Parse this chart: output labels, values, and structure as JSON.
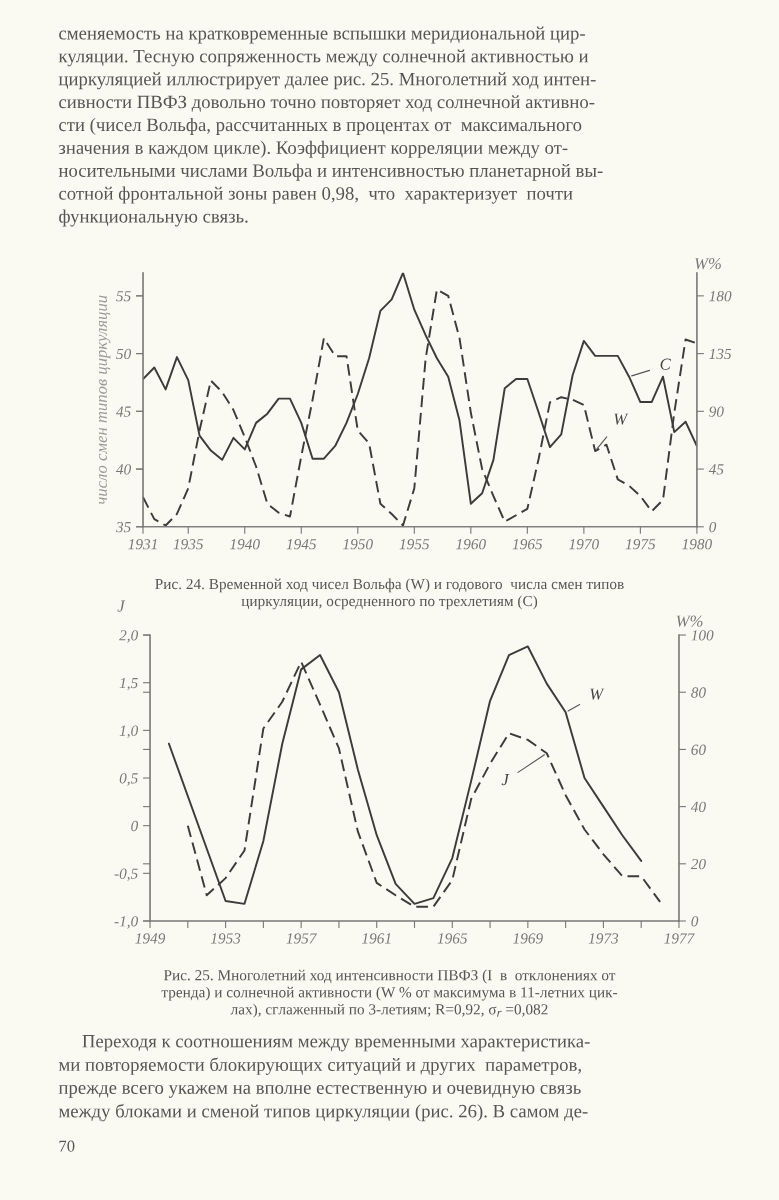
{
  "chart_data": [
    {
      "type": "line",
      "ylabel": "число смен типов циркуляции",
      "y2label": "W%",
      "legend": false,
      "annotations": [
        "сменяемость на кратковременные вспышки меридиональной цир-\nкуляции. Тесную сопряженность между солнечной активностью и\nциркуляцией иллюстрирует далее рис. 25. Многолетний ход интен-\nсивности ПВФЗ довольно точно повторяет ход солнечной активно-\nсти (чисел Вольфа, рассчитанных в процентах от  максимального\nзначения в каждом цикле). Коэффициент корреляции между от-\nносительными числами Вольфа и интенсивностью планетарной вы-\nсотной фронтальной зоны равен 0,98,  что  характеризует  почти\nфункциональную связь.",
        "Рис. 24. Временной ход чисел Вольфа (W) и годового  числа смен типов\nциркуляции, осредненного по трехлетиям (C)"
      ],
      "xlim": [
        1931,
        1980
      ],
      "xticks": [
        1931,
        1935,
        1940,
        1945,
        1950,
        1955,
        1960,
        1965,
        1970,
        1975,
        1980
      ],
      "ylim": [
        35,
        57
      ],
      "yticks": [
        35,
        40,
        45,
        50,
        55
      ],
      "y2lim": [
        0,
        198
      ],
      "y2ticks": [
        0,
        45,
        90,
        135,
        180
      ],
      "series": [
        {
          "name": "C",
          "color": "#3c3c3c",
          "line_style": "solid",
          "x": [
            1931,
            1932,
            1933,
            1934,
            1935,
            1936,
            1937,
            1938,
            1939,
            1940,
            1941,
            1942,
            1943,
            1944,
            1945,
            1946,
            1947,
            1948,
            1949,
            1950,
            1951,
            1952,
            1953,
            1954,
            1955,
            1956,
            1957,
            1958,
            1959,
            1960,
            1961,
            1962,
            1963,
            1964,
            1965,
            1966,
            1967,
            1968,
            1969,
            1970,
            1971,
            1972,
            1973,
            1974,
            1975,
            1976,
            1977,
            1978,
            1979,
            1980
          ],
          "values": [
            47.8,
            48.8,
            46.9,
            49.7,
            47.7,
            42.9,
            41.6,
            40.8,
            42.7,
            41.7,
            44.0,
            44.8,
            46.1,
            46.1,
            44.0,
            40.9,
            40.9,
            42.0,
            44.0,
            46.5,
            49.6,
            53.7,
            54.7,
            57.0,
            53.8,
            51.6,
            49.6,
            48.0,
            44.2,
            37.0,
            37.9,
            40.8,
            47.0,
            47.8,
            47.8,
            44.9,
            41.9,
            43.0,
            48.1,
            51.1,
            49.8,
            49.8,
            49.8,
            48.0,
            45.8,
            45.8,
            48.0,
            43.2,
            44.1,
            42.0
          ]
        },
        {
          "name": "W",
          "color": "#3c3c3c",
          "line_style": "dashed",
          "axis": "y2",
          "x": [
            1931,
            1932,
            1933,
            1934,
            1935,
            1936,
            1937,
            1938,
            1939,
            1940,
            1941,
            1942,
            1943,
            1944,
            1945,
            1946,
            1947,
            1948,
            1949,
            1950,
            1951,
            1952,
            1953,
            1954,
            1955,
            1956,
            1957,
            1958,
            1959,
            1960,
            1961,
            1962,
            1963,
            1964,
            1965,
            1966,
            1967,
            1968,
            1969,
            1970,
            1971,
            1972,
            1973,
            1974,
            1975,
            1976,
            1977,
            1978,
            1979,
            1980
          ],
          "values": [
            23,
            6,
            1,
            10,
            30,
            75,
            114,
            105,
            91,
            70,
            47,
            18,
            11,
            8,
            55,
            99,
            147,
            133,
            133,
            75,
            65,
            18,
            10,
            1,
            30,
            131,
            185,
            180,
            147,
            89,
            45,
            24,
            4,
            9,
            14,
            53,
            97,
            101,
            99,
            95,
            59,
            64,
            37,
            32,
            24,
            12,
            21,
            89,
            146,
            143
          ]
        }
      ]
    },
    {
      "type": "line",
      "ylabel": "J",
      "y2label": "W%",
      "legend": false,
      "annotations": [
        "Рис. 25. Многолетний ход интенсивности ПВФЗ (I  в  отклонениях от\nтренда) и солнечной активности (W % от максимума в 11-летних цик-\nлах), сглаженный по 3-летиям; R=0,92, σ$_{r}$ =0,082",
        "     Переходя к соотношениям между временными характеристика-\nми повторяемости блокирующих ситуаций и других  параметров,\nпрежде всего укажем на вполне естественную и очевидную связь\nмежду блоками и сменой типов циркуляции (рис. 26). В самом де-",
        "70"
      ],
      "xlim": [
        1949,
        1977
      ],
      "xticks": [
        1949,
        {
          "value": 1951,
          "label": null
        },
        1953,
        {
          "value": 1955,
          "label": null
        },
        1957,
        {
          "value": 1959,
          "label": null
        },
        1961,
        {
          "value": 1963,
          "label": null
        },
        1965,
        {
          "value": 1967,
          "label": null
        },
        1969,
        {
          "value": 1971,
          "label": null
        },
        1973,
        {
          "value": 1975,
          "label": null
        },
        1977
      ],
      "ylim": [
        -1.0,
        2.0
      ],
      "yticks": [
        {
          "value": -1.0,
          "label": "-1,0"
        },
        {
          "value": -0.5,
          "label": "-0,5"
        },
        0,
        {
          "value": 0.5,
          "label": "0,5"
        },
        {
          "value": 1.0,
          "label": "1,0"
        },
        {
          "value": 1.5,
          "label": "1,5"
        },
        {
          "value": 2.0,
          "label": "2,0"
        }
      ],
      "y2lim": [
        0,
        100
      ],
      "y2ticks": [
        0,
        20,
        40,
        60,
        80,
        100
      ],
      "series": [
        {
          "name": "W",
          "color": "#3c3c3c",
          "line_style": "solid",
          "axis": "y2",
          "x": [
            1950,
            1953,
            1954,
            1955,
            1956,
            1957,
            1958,
            1959,
            1960,
            1961,
            1962,
            1963,
            1964,
            1965,
            1966,
            1967,
            1968,
            1969,
            1970,
            1971,
            1972,
            1973,
            1974,
            1975
          ],
          "values": [
            62,
            7,
            6,
            28,
            62,
            88,
            93,
            80,
            53,
            30,
            13,
            6,
            8,
            22,
            49,
            77,
            93,
            96,
            83,
            73,
            50,
            40,
            30,
            21
          ]
        },
        {
          "name": "J",
          "color": "#3c3c3c",
          "line_style": "dashed",
          "x": [
            1951,
            1952,
            1953,
            1954,
            1955,
            1956,
            1957,
            1958,
            1959,
            1960,
            1961,
            1962,
            1963,
            1964,
            1965,
            1966,
            1967,
            1968,
            1969,
            1970,
            1971,
            1972,
            1973,
            1974,
            1975,
            1976
          ],
          "values": [
            0.0,
            -0.73,
            -0.55,
            -0.26,
            1.02,
            1.3,
            1.72,
            1.27,
            0.81,
            -0.06,
            -0.6,
            -0.73,
            -0.85,
            -0.85,
            -0.57,
            0.28,
            0.65,
            0.97,
            0.9,
            0.76,
            0.32,
            -0.04,
            -0.3,
            -0.53,
            -0.53,
            -0.8
          ]
        }
      ]
    }
  ]
}
